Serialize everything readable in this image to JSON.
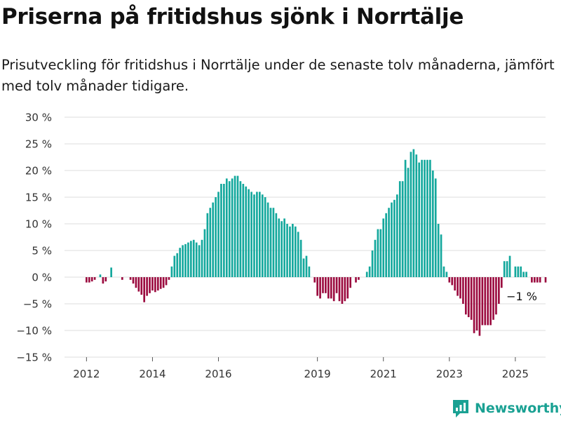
{
  "header": {
    "title": "Priserna på fritidshus sjönk i Norrtälje",
    "subtitle": "Prisutveckling för fritidshus i Norrtälje under de senaste tolv månaderna, jämfört med tolv månader tidigare."
  },
  "colors": {
    "positive": "#14a89d",
    "negative": "#9b0b3f",
    "grid": "#dddddd",
    "axis_text": "#333333",
    "brand": "#1aa193"
  },
  "chart_data": {
    "type": "bar",
    "title": "Priserna på fritidshus sjönk i Norrtälje",
    "subtitle": "Prisutveckling för fritidshus i Norrtälje under de senaste tolv månaderna, jämfört med tolv månader tidigare.",
    "ylabel": "",
    "xlabel": "",
    "ylim": [
      -15,
      30
    ],
    "yticks": [
      -15,
      -10,
      -5,
      0,
      5,
      10,
      15,
      20,
      25,
      30
    ],
    "ytick_labels": [
      "−15 %",
      "−10 %",
      "−5 %",
      "0 %",
      "5 %",
      "10 %",
      "15 %",
      "20 %",
      "25 %",
      "30 %"
    ],
    "xlim": [
      "2011-05",
      "2025-12"
    ],
    "xticks": [
      "2012-01",
      "2014-01",
      "2016-01",
      "2019-01",
      "2021-01",
      "2023-01",
      "2025-01"
    ],
    "xtick_labels": [
      "2012",
      "2014",
      "2016",
      "2019",
      "2021",
      "2023",
      "2025"
    ],
    "grid": true,
    "annotation": "−1 %",
    "series": [
      {
        "start": "2012-01",
        "values": [
          -1,
          -1,
          -0.8,
          -0.5,
          0,
          0.5,
          -1.2,
          -0.8,
          0,
          1.8,
          0,
          0,
          0,
          -0.5,
          0,
          0,
          -0.5,
          -1.2,
          -2,
          -2.7,
          -3.3,
          -4.7,
          -3.5,
          -3,
          -2.5,
          -2.8,
          -2.5,
          -2.2,
          -2,
          -1.5,
          -0.5,
          2,
          4,
          4.5,
          5.5,
          6,
          6.2,
          6.5,
          6.8,
          7,
          6.5,
          6,
          7,
          9,
          12,
          13,
          14,
          15,
          16,
          17.5,
          17.5,
          18.5,
          18,
          18.5,
          19,
          19,
          18,
          17.5,
          17,
          16.5,
          16,
          15.5,
          16,
          16,
          15.5,
          15,
          14,
          13,
          13,
          12,
          11,
          10.5,
          11,
          10,
          9.5,
          10,
          9.5,
          8.5,
          7,
          3.5,
          4,
          2,
          0,
          -1,
          -3.5,
          -4,
          -3,
          -3,
          -4,
          -4,
          -4.5,
          -3,
          -4.5,
          -5,
          -4.5,
          -4,
          -2,
          0,
          -1,
          -0.5,
          0,
          0,
          1,
          2,
          5,
          7,
          9,
          9,
          11,
          12,
          13,
          14,
          14.5,
          15.5,
          18,
          18,
          22,
          20.5,
          23.5,
          24,
          23,
          21.5,
          22,
          22,
          22,
          22,
          20,
          18.5,
          10,
          8,
          2,
          1,
          -1,
          -1.5,
          -2.5,
          -3.5,
          -4,
          -5,
          -7,
          -7.5,
          -8,
          -10.5,
          -10,
          -11,
          -9,
          -9,
          -9,
          -9,
          -8,
          -7,
          -5,
          -2,
          3,
          3,
          4,
          0,
          2,
          2,
          2,
          1,
          1,
          0,
          -1,
          -1,
          -1,
          -1,
          0,
          -1
        ]
      }
    ]
  }
}
